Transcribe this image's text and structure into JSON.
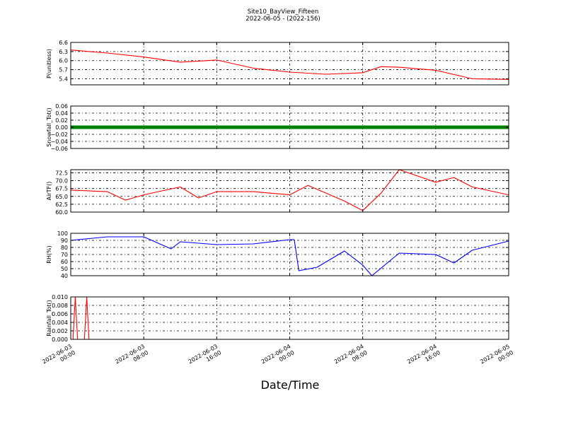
{
  "chart_data": [
    {
      "type": "line",
      "title": "Site10_BayView_Fifteen",
      "subtitle": "2022-06-05 - (2022-156)",
      "xlabel": "Date/Time",
      "ylabel": "P(unitless)",
      "ylim": [
        5.2,
        6.6
      ],
      "yticks": [
        "6.6",
        "6.3",
        "6.0",
        "5.7",
        "5.4"
      ],
      "ytick_values": [
        6.6,
        6.3,
        6.0,
        5.7,
        5.4
      ],
      "x": [
        "2022-06-03 00:00",
        "2022-06-03 04:00",
        "2022-06-03 08:00",
        "2022-06-03 12:00",
        "2022-06-03 16:00",
        "2022-06-03 20:00",
        "2022-06-04 00:00",
        "2022-06-04 04:00",
        "2022-06-04 08:00",
        "2022-06-04 10:00",
        "2022-06-04 12:00",
        "2022-06-04 16:00",
        "2022-06-04 20:00",
        "2022-06-05 00:00"
      ],
      "series": [
        {
          "color": "#ff0000",
          "values": [
            6.35,
            6.25,
            6.12,
            5.95,
            6.02,
            5.75,
            5.62,
            5.55,
            5.6,
            5.8,
            5.78,
            5.68,
            5.4,
            5.38
          ]
        }
      ],
      "grid": true
    },
    {
      "type": "scatter",
      "ylabel": "Snowfall_Tot()",
      "ylim": [
        -0.06,
        0.06
      ],
      "yticks": [
        "0.06",
        "0.04",
        "0.02",
        "0.00",
        "−0.02",
        "−0.04",
        "−0.06"
      ],
      "ytick_values": [
        0.06,
        0.04,
        0.02,
        0.0,
        -0.02,
        -0.04,
        -0.06
      ],
      "x": [
        "2022-06-03 00:00",
        "2022-06-05 00:00"
      ],
      "series": [
        {
          "color": "#008000",
          "values": [
            0.0,
            0.0
          ]
        }
      ],
      "grid": true
    },
    {
      "type": "line",
      "ylabel": "AirTF()",
      "ylim": [
        60.0,
        73.5
      ],
      "yticks": [
        "72.5",
        "70.0",
        "67.5",
        "65.0",
        "62.5",
        "60.0"
      ],
      "ytick_values": [
        72.5,
        70.0,
        67.5,
        65.0,
        62.5,
        60.0
      ],
      "x": [
        "2022-06-03 00:00",
        "2022-06-03 04:00",
        "2022-06-03 06:00",
        "2022-06-03 08:00",
        "2022-06-03 12:00",
        "2022-06-03 14:00",
        "2022-06-03 16:00",
        "2022-06-03 20:00",
        "2022-06-04 00:00",
        "2022-06-04 02:00",
        "2022-06-04 06:00",
        "2022-06-04 08:00",
        "2022-06-04 10:00",
        "2022-06-04 12:00",
        "2022-06-04 16:00",
        "2022-06-04 18:00",
        "2022-06-04 20:00",
        "2022-06-05 00:00"
      ],
      "series": [
        {
          "color": "#ff0000",
          "values": [
            67.0,
            66.5,
            63.8,
            65.5,
            68.0,
            64.5,
            66.5,
            66.5,
            65.5,
            68.5,
            63.5,
            60.5,
            66.0,
            73.5,
            69.5,
            71.0,
            68.0,
            65.5
          ]
        }
      ],
      "grid": true
    },
    {
      "type": "line",
      "ylabel": "RH(%)",
      "ylim": [
        40,
        100
      ],
      "yticks": [
        "100",
        "90",
        "80",
        "70",
        "60",
        "50",
        "40"
      ],
      "ytick_values": [
        100,
        90,
        80,
        70,
        60,
        50,
        40
      ],
      "x": [
        "2022-06-03 00:00",
        "2022-06-03 04:00",
        "2022-06-03 08:00",
        "2022-06-03 11:00",
        "2022-06-03 12:00",
        "2022-06-03 16:00",
        "2022-06-03 20:00",
        "2022-06-04 00:00",
        "2022-06-04 00:30",
        "2022-06-04 01:00",
        "2022-06-04 03:00",
        "2022-06-04 06:00",
        "2022-06-04 08:00",
        "2022-06-04 09:00",
        "2022-06-04 12:00",
        "2022-06-04 16:00",
        "2022-06-04 18:00",
        "2022-06-04 20:00",
        "2022-06-05 00:00"
      ],
      "series": [
        {
          "color": "#0000ff",
          "values": [
            90,
            95,
            95,
            78,
            88,
            84,
            85,
            91,
            91,
            47,
            52,
            75,
            55,
            40,
            72,
            70,
            58,
            76,
            89
          ]
        }
      ],
      "grid": true
    },
    {
      "type": "line",
      "ylabel": "Rainfall_Tot()",
      "ylim": [
        0.0,
        0.01
      ],
      "yticks": [
        "0.010",
        "0.008",
        "0.006",
        "0.004",
        "0.002",
        "0.000"
      ],
      "ytick_values": [
        0.01,
        0.008,
        0.006,
        0.004,
        0.002,
        0.0
      ],
      "x": [
        "2022-06-03 00:00",
        "2022-06-03 00:15",
        "2022-06-03 00:30",
        "2022-06-03 00:45",
        "2022-06-03 01:30",
        "2022-06-03 01:45",
        "2022-06-03 02:00",
        "2022-06-05 00:00"
      ],
      "series": [
        {
          "color": "#ff0000",
          "values": [
            0.0,
            0.0,
            0.01,
            0.0,
            0.0,
            0.01,
            0.0,
            0.0
          ]
        }
      ],
      "grid": true
    }
  ],
  "xaxis": {
    "tick_lines": [
      [
        "2022-06-03",
        "00:00"
      ],
      [
        "2022-06-03",
        "08:00"
      ],
      [
        "2022-06-03",
        "16:00"
      ],
      [
        "2022-06-04",
        "00:00"
      ],
      [
        "2022-06-04",
        "08:00"
      ],
      [
        "2022-06-04",
        "16:00"
      ],
      [
        "2022-06-05",
        "00:00"
      ]
    ],
    "start": "2022-06-03 00:00",
    "end": "2022-06-05 00:00"
  }
}
